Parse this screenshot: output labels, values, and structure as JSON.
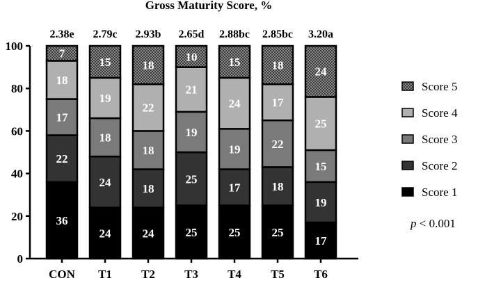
{
  "chart_data": {
    "type": "bar",
    "stacked": true,
    "title": "Gross Maturity Score, %",
    "xlabel": "",
    "ylabel": "",
    "ylim": [
      0,
      100
    ],
    "yticks": [
      0,
      20,
      40,
      60,
      80,
      100
    ],
    "categories": [
      "CON",
      "T1",
      "T2",
      "T3",
      "T4",
      "T5",
      "T6"
    ],
    "top_labels": [
      "2.38e",
      "2.79c",
      "2.93b",
      "2.65d",
      "2.88bc",
      "2.85bc",
      "3.20a"
    ],
    "series": [
      {
        "name": "Score 1",
        "color": "#000000",
        "pattern": "solid",
        "values": [
          36,
          24,
          24,
          25,
          25,
          25,
          17
        ]
      },
      {
        "name": "Score 2",
        "color": "#333333",
        "pattern": "solid",
        "values": [
          22,
          24,
          18,
          25,
          17,
          18,
          19
        ]
      },
      {
        "name": "Score 3",
        "color": "#7a7a7a",
        "pattern": "solid",
        "values": [
          17,
          18,
          18,
          19,
          19,
          22,
          15
        ]
      },
      {
        "name": "Score 4",
        "color": "#b0b0b0",
        "pattern": "solid",
        "values": [
          18,
          19,
          22,
          21,
          24,
          17,
          25
        ]
      },
      {
        "name": "Score 5",
        "color": "#6e6e6e",
        "pattern": "checker",
        "values": [
          7,
          15,
          18,
          10,
          15,
          18,
          24
        ]
      }
    ],
    "legend_position": "right",
    "legend_order": [
      "Score 5",
      "Score 4",
      "Score 3",
      "Score 2",
      "Score 1"
    ],
    "grid": false
  },
  "annotation": {
    "p_italic": "p",
    "p_rest": " < 0.001"
  }
}
